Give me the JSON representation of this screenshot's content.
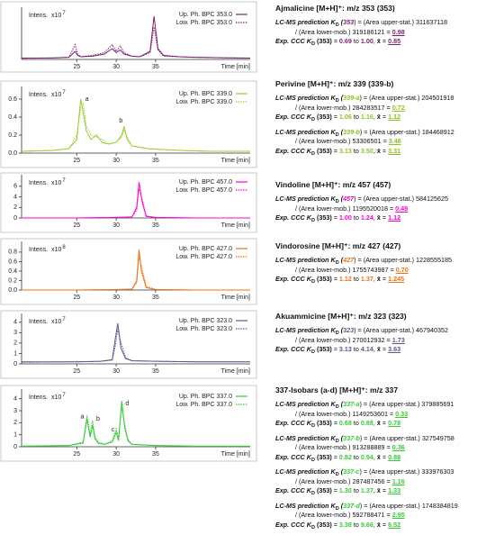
{
  "chart_data": [
    {
      "type": "line",
      "intensity_label": "Intens.",
      "scale_base": "x10",
      "scale_exponent": "7",
      "xlabel": "Time [min]",
      "legend": "upper right",
      "xlim": [
        18,
        47
      ],
      "ylim": [
        0,
        1.8
      ],
      "xticks": [
        25,
        30,
        35
      ],
      "x": [
        18,
        20,
        22,
        24,
        24.8,
        25.1,
        25.5,
        27,
        28.5,
        29.5,
        30,
        30.5,
        31,
        32,
        33,
        34.3,
        34.8,
        35.3,
        36,
        38,
        40,
        42,
        44,
        47
      ],
      "series": [
        {
          "name": "Up. Ph. BPC 353.0",
          "color": "#7b1f6e",
          "style": "solid",
          "values": [
            0.05,
            0.05,
            0.06,
            0.08,
            0.3,
            0.15,
            0.1,
            0.12,
            0.2,
            0.4,
            0.25,
            0.35,
            0.2,
            0.12,
            0.1,
            0.3,
            1.6,
            0.4,
            0.15,
            0.1,
            0.08,
            0.07,
            0.06,
            0.05
          ]
        },
        {
          "name": "Low. Ph. BPC 353.0",
          "color": "#7b1f6e",
          "style": "dotted",
          "values": [
            0.04,
            0.05,
            0.05,
            0.08,
            0.55,
            0.2,
            0.1,
            0.15,
            0.25,
            0.55,
            0.3,
            0.5,
            0.25,
            0.12,
            0.1,
            0.25,
            1.2,
            0.35,
            0.12,
            0.1,
            0.08,
            0.07,
            0.06,
            0.05
          ]
        }
      ]
    },
    {
      "type": "line",
      "intensity_label": "Intens.",
      "scale_base": "x10",
      "scale_exponent": "7",
      "xlabel": "Time [min]",
      "legend": "upper right",
      "xlim": [
        18,
        47
      ],
      "ylim": [
        0,
        0.7
      ],
      "xticks": [
        25,
        30,
        35
      ],
      "yticks": [
        {
          "value": 0,
          "label": "0.0"
        },
        0.2,
        0.4,
        0.6
      ],
      "annotations": [
        "a",
        "b"
      ],
      "x": [
        18,
        22,
        24,
        25,
        25.5,
        25.8,
        26.2,
        26.8,
        27.5,
        28.2,
        29,
        30,
        30.7,
        31,
        31.4,
        32,
        34,
        38,
        42,
        47
      ],
      "series": [
        {
          "name": "Up. Ph. BPC 339.0",
          "color": "#9acd32",
          "style": "solid",
          "values": [
            0.02,
            0.03,
            0.05,
            0.15,
            0.6,
            0.45,
            0.25,
            0.15,
            0.2,
            0.12,
            0.1,
            0.12,
            0.2,
            0.3,
            0.15,
            0.08,
            0.05,
            0.03,
            0.02,
            0.02
          ]
        },
        {
          "name": "Low. Ph. BPC 339.0",
          "color": "#9acd32",
          "style": "dotted",
          "values": [
            0.02,
            0.03,
            0.05,
            0.2,
            0.5,
            0.55,
            0.3,
            0.2,
            0.18,
            0.15,
            0.1,
            0.12,
            0.18,
            0.25,
            0.18,
            0.08,
            0.05,
            0.03,
            0.02,
            0.02
          ]
        }
      ]
    },
    {
      "type": "line",
      "intensity_label": "Intens.",
      "scale_base": "x10",
      "scale_exponent": "7",
      "xlabel": "Time [min]",
      "legend": "upper right",
      "xlim": [
        18,
        47
      ],
      "ylim": [
        0,
        7.5
      ],
      "xticks": [
        25,
        30,
        35
      ],
      "yticks": [
        0,
        2,
        4,
        6
      ],
      "x": [
        18,
        25,
        30,
        32,
        32.6,
        32.9,
        33.3,
        33.8,
        35,
        40,
        47
      ],
      "series": [
        {
          "name": "Up. Ph. BPC 457.0",
          "color": "#ff00cc",
          "style": "solid",
          "values": [
            0,
            0,
            0.1,
            0.2,
            2,
            6.8,
            3,
            0.3,
            0.1,
            0,
            0
          ]
        },
        {
          "name": "Low. Ph. BPC 457.0",
          "color": "#ff00cc",
          "style": "dotted",
          "values": [
            0,
            0,
            0.1,
            0.2,
            1.5,
            5.5,
            3.5,
            0.4,
            0.1,
            0,
            0
          ]
        }
      ]
    },
    {
      "type": "line",
      "intensity_label": "Intens.",
      "scale_base": "x10",
      "scale_exponent": "8",
      "xlabel": "Time [min]",
      "legend": "upper right",
      "xlim": [
        18,
        47
      ],
      "ylim": [
        0,
        0.95
      ],
      "xticks": [
        25,
        30,
        35
      ],
      "yticks": [
        {
          "value": 0,
          "label": "0.0"
        },
        0.2,
        0.4,
        0.6,
        0.8
      ],
      "x": [
        18,
        25,
        30,
        32,
        32.6,
        32.9,
        33.2,
        33.8,
        35,
        40,
        47
      ],
      "series": [
        {
          "name": "Up. Ph. BPC 427.0",
          "color": "#f07010",
          "style": "solid",
          "values": [
            0,
            0,
            0.01,
            0.02,
            0.2,
            0.85,
            0.4,
            0.05,
            0.01,
            0,
            0
          ]
        },
        {
          "name": "Low. Ph. BPC 427.0",
          "color": "#f07010",
          "style": "dotted",
          "values": [
            0,
            0,
            0.01,
            0.02,
            0.15,
            0.7,
            0.5,
            0.08,
            0.01,
            0,
            0
          ]
        }
      ]
    },
    {
      "type": "line",
      "intensity_label": "Intens.",
      "scale_base": "x10",
      "scale_exponent": "7",
      "xlabel": "Time [min]",
      "legend": "upper right",
      "xlim": [
        18,
        47
      ],
      "ylim": [
        0,
        4.5
      ],
      "xticks": [
        25,
        30,
        35
      ],
      "yticks": [
        0,
        1,
        2,
        3,
        4
      ],
      "x": [
        18,
        25,
        28,
        29.5,
        29.9,
        30.2,
        30.6,
        31.2,
        32,
        35,
        40,
        47
      ],
      "series": [
        {
          "name": "Up. Ph. BPC 323.0",
          "color": "#5a5a8c",
          "style": "solid",
          "values": [
            0.2,
            0.2,
            0.25,
            0.4,
            2.5,
            3.9,
            1.5,
            0.5,
            0.3,
            0.25,
            0.2,
            0.2
          ]
        },
        {
          "name": "Low. Ph. BPC 323.0",
          "color": "#5a5a8c",
          "style": "dotted",
          "values": [
            0.15,
            0.2,
            0.25,
            0.35,
            1.8,
            3.3,
            2.0,
            0.6,
            0.3,
            0.25,
            0.2,
            0.2
          ]
        }
      ]
    },
    {
      "type": "line",
      "intensity_label": "Intens.",
      "scale_base": "x10",
      "scale_exponent": "7",
      "xlabel": "Time [min]",
      "legend": "upper right",
      "xlim": [
        18,
        47
      ],
      "ylim": [
        0,
        4.5
      ],
      "xticks": [
        25,
        30,
        35
      ],
      "yticks": [
        0,
        1,
        2,
        3,
        4
      ],
      "annotations": [
        "a",
        "b",
        "c",
        "d"
      ],
      "x": [
        18,
        24,
        25.8,
        26.3,
        26.7,
        27.0,
        27.3,
        27.7,
        28.5,
        29.5,
        30.0,
        30.3,
        30.7,
        31.1,
        31.5,
        32,
        35,
        40,
        47
      ],
      "series": [
        {
          "name": "Up. Ph. BPC 337.0",
          "color": "#33cc33",
          "style": "solid",
          "values": [
            0.05,
            0.1,
            0.3,
            2.3,
            0.8,
            1.8,
            0.7,
            0.3,
            0.2,
            0.4,
            1.2,
            0.5,
            3.8,
            1.5,
            0.5,
            0.2,
            0.1,
            0.05,
            0.05
          ]
        },
        {
          "name": "Low. Ph. BPC 337.0",
          "color": "#33cc33",
          "style": "dotted",
          "values": [
            0.05,
            0.1,
            0.4,
            2.6,
            1.0,
            2.2,
            0.9,
            0.4,
            0.2,
            0.5,
            1.5,
            0.8,
            3.3,
            1.8,
            0.6,
            0.2,
            0.1,
            0.05,
            0.05
          ]
        }
      ]
    }
  ],
  "labels": {
    "pred": "LC-MS prediction",
    "k": "K",
    "d": "D",
    "open": "(",
    "close": ")",
    "upper": "= (Area upper-stat.)",
    "lower": "/ (Area lower-mob.)",
    "eq": "=",
    "ccc": "Exp. CCC",
    "ref": "(353)",
    "to": "to",
    "comma": ",",
    "mean": "x̄"
  },
  "text_panels": [
    {
      "title": "Ajmalicine [M+H]⁺: m/z 353 (353)",
      "color": "#7b1f6e",
      "groups": [
        {
          "id": "353",
          "upper": "311637118",
          "lower": "319186121",
          "ratio": "0.98",
          "min": "0.69",
          "max": "1.00",
          "mean": "0.85"
        }
      ]
    },
    {
      "title": "Perivine [M+H]⁺: m/z 339 (339-b)",
      "color": "#8dc21f",
      "groups": [
        {
          "id": "339-a",
          "upper": "204501918",
          "lower": "284283517",
          "ratio": "0.72",
          "min": "1.06",
          "max": "1.16",
          "mean": "1.12"
        },
        {
          "id": "339-b",
          "upper": "184468912",
          "lower": "53306501",
          "ratio": "3.46",
          "min": "3.13",
          "max": "3.50",
          "mean": "3.31"
        }
      ]
    },
    {
      "title": "Vindoline [M+H]⁺: m/z 457 (457)",
      "color": "#ff00cc",
      "groups": [
        {
          "id": "457",
          "upper": "584125625",
          "lower": "1195520018",
          "ratio": "0.49",
          "min": "1.00",
          "max": "1.24",
          "mean": "1.12"
        }
      ]
    },
    {
      "title": "Vindorosine [M+H]⁺: m/z 427 (427)",
      "color": "#f07010",
      "groups": [
        {
          "id": "427",
          "upper": "1228555185",
          "lower": "1755743987",
          "ratio": "0.70",
          "min": "1.12",
          "max": "1.37",
          "mean": "1.245"
        }
      ]
    },
    {
      "title": "Akuammicine [M+H]⁺: m/z 323 (323)",
      "color": "#5a5a8c",
      "groups": [
        {
          "id": "323",
          "upper": "467940352",
          "lower": "270012932",
          "ratio": "1.73",
          "min": "3.13",
          "max": "4.14",
          "mean": "3.63"
        }
      ]
    },
    {
      "title": "337-Isobars (a-d) [M+H]⁺: m/z 337",
      "color": "#33cc33",
      "groups": [
        {
          "id": "337-a",
          "upper": "379885691",
          "lower": "1149253601",
          "ratio": "0.33",
          "min": "0.68",
          "max": "0.88",
          "mean": "0.78"
        },
        {
          "id": "337-b",
          "upper": "327549758",
          "lower": "913288889",
          "ratio": "0.36",
          "min": "0.82",
          "max": "0.94",
          "mean": "0.88"
        },
        {
          "id": "337-c",
          "upper": "333976303",
          "lower": "287487456",
          "ratio": "1.16",
          "min": "1.30",
          "max": "1.37",
          "mean": "1.33"
        },
        {
          "id": "337-d",
          "upper": "1748384819",
          "lower": "592788471",
          "ratio": "2.95",
          "min": "3.38",
          "max": "9.66",
          "mean": "6.52"
        }
      ]
    }
  ]
}
